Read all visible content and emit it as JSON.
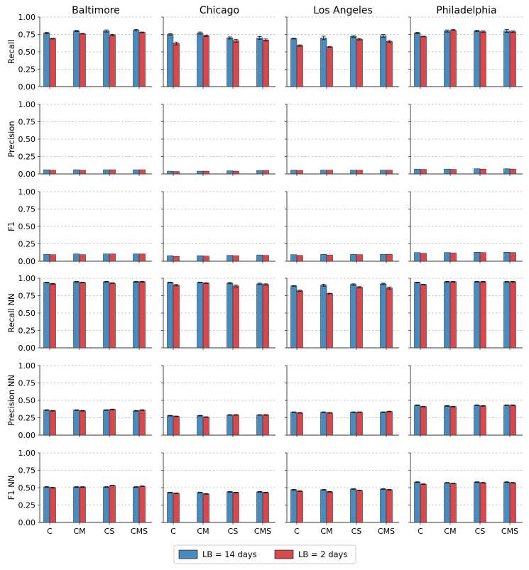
{
  "chart_data": {
    "type": "bar",
    "layout": "grid",
    "columns": [
      "Baltimore",
      "Chicago",
      "Los Angeles",
      "Philadelphia"
    ],
    "rows": [
      "Recall",
      "Precision",
      "F1",
      "Recall NN",
      "Precision NN",
      "F1 NN"
    ],
    "categories": [
      "C",
      "CM",
      "CS",
      "CMS"
    ],
    "ylim": [
      0,
      1
    ],
    "yticks": [
      "0.00",
      "0.25",
      "0.50",
      "0.75",
      "1.00"
    ],
    "grid": true,
    "legend": {
      "placement": "bottom-center",
      "entries": [
        {
          "label": "LB = 14 days",
          "color": "#4a8bbd"
        },
        {
          "label": "LB = 2 days",
          "color": "#d8494d"
        }
      ]
    },
    "panels": {
      "Recall": {
        "Baltimore": {
          "lb14": [
            0.77,
            0.8,
            0.8,
            0.81
          ],
          "lb2": [
            0.69,
            0.76,
            0.74,
            0.78
          ],
          "err14": [
            0.01,
            0.01,
            0.015,
            0.01
          ],
          "err2": [
            0.005,
            0.005,
            0.01,
            0.005
          ]
        },
        "Chicago": {
          "lb14": [
            0.75,
            0.77,
            0.7,
            0.7
          ],
          "lb2": [
            0.62,
            0.73,
            0.66,
            0.67
          ],
          "err14": [
            0.01,
            0.015,
            0.015,
            0.02
          ],
          "err2": [
            0.02,
            0.01,
            0.02,
            0.015
          ]
        },
        "Los Angeles": {
          "lb14": [
            0.69,
            0.7,
            0.72,
            0.73
          ],
          "lb2": [
            0.59,
            0.57,
            0.68,
            0.65
          ],
          "err14": [
            0.005,
            0.025,
            0.01,
            0.02
          ],
          "err2": [
            0.01,
            0.005,
            0.01,
            0.015
          ]
        },
        "Philadelphia": {
          "lb14": [
            0.77,
            0.8,
            0.8,
            0.8
          ],
          "lb2": [
            0.72,
            0.81,
            0.79,
            0.79
          ],
          "err14": [
            0.01,
            0.015,
            0.01,
            0.02
          ],
          "err2": [
            0.005,
            0.01,
            0.01,
            0.01
          ]
        }
      },
      "Precision": {
        "Baltimore": {
          "lb14": [
            0.06,
            0.06,
            0.06,
            0.06
          ],
          "lb2": [
            0.055,
            0.055,
            0.06,
            0.06
          ]
        },
        "Chicago": {
          "lb14": [
            0.04,
            0.04,
            0.045,
            0.05
          ],
          "lb2": [
            0.035,
            0.04,
            0.04,
            0.05
          ]
        },
        "Los Angeles": {
          "lb14": [
            0.055,
            0.055,
            0.055,
            0.055
          ],
          "lb2": [
            0.05,
            0.055,
            0.055,
            0.055
          ]
        },
        "Philadelphia": {
          "lb14": [
            0.07,
            0.07,
            0.075,
            0.075
          ],
          "lb2": [
            0.065,
            0.065,
            0.07,
            0.07
          ]
        }
      },
      "F1": {
        "Baltimore": {
          "lb14": [
            0.1,
            0.105,
            0.105,
            0.105
          ],
          "lb2": [
            0.095,
            0.095,
            0.105,
            0.105
          ]
        },
        "Chicago": {
          "lb14": [
            0.08,
            0.08,
            0.085,
            0.09
          ],
          "lb2": [
            0.07,
            0.075,
            0.08,
            0.085
          ]
        },
        "Los Angeles": {
          "lb14": [
            0.095,
            0.1,
            0.1,
            0.1
          ],
          "lb2": [
            0.085,
            0.09,
            0.095,
            0.1
          ]
        },
        "Philadelphia": {
          "lb14": [
            0.125,
            0.125,
            0.13,
            0.13
          ],
          "lb2": [
            0.115,
            0.12,
            0.125,
            0.125
          ]
        }
      },
      "Recall NN": {
        "Baltimore": {
          "lb14": [
            0.94,
            0.95,
            0.95,
            0.95
          ],
          "lb2": [
            0.92,
            0.94,
            0.93,
            0.95
          ],
          "err14": [
            0.005,
            0.005,
            0.005,
            0.005
          ],
          "err2": [
            0.005,
            0.005,
            0.005,
            0.005
          ]
        },
        "Chicago": {
          "lb14": [
            0.94,
            0.94,
            0.93,
            0.92
          ],
          "lb2": [
            0.9,
            0.93,
            0.89,
            0.91
          ],
          "err14": [
            0.005,
            0.005,
            0.01,
            0.01
          ],
          "err2": [
            0.01,
            0.005,
            0.015,
            0.01
          ]
        },
        "Los Angeles": {
          "lb14": [
            0.89,
            0.9,
            0.91,
            0.92
          ],
          "lb2": [
            0.82,
            0.78,
            0.87,
            0.86
          ],
          "err14": [
            0.005,
            0.015,
            0.01,
            0.01
          ],
          "err2": [
            0.01,
            0.005,
            0.01,
            0.015
          ]
        },
        "Philadelphia": {
          "lb14": [
            0.94,
            0.95,
            0.95,
            0.95
          ],
          "lb2": [
            0.91,
            0.95,
            0.95,
            0.95
          ],
          "err14": [
            0.005,
            0.005,
            0.005,
            0.005
          ],
          "err2": [
            0.005,
            0.005,
            0.005,
            0.005
          ]
        }
      },
      "Precision NN": {
        "Baltimore": {
          "lb14": [
            0.36,
            0.36,
            0.36,
            0.35
          ],
          "lb2": [
            0.35,
            0.35,
            0.37,
            0.36
          ],
          "err14": [
            0.005,
            0.005,
            0.005,
            0.005
          ],
          "err2": [
            0.005,
            0.005,
            0.005,
            0.005
          ]
        },
        "Chicago": {
          "lb14": [
            0.28,
            0.28,
            0.29,
            0.29
          ],
          "lb2": [
            0.27,
            0.26,
            0.29,
            0.29
          ],
          "err14": [
            0.005,
            0.005,
            0.005,
            0.005
          ],
          "err2": [
            0.005,
            0.005,
            0.005,
            0.005
          ]
        },
        "Los Angeles": {
          "lb14": [
            0.33,
            0.33,
            0.33,
            0.33
          ],
          "lb2": [
            0.32,
            0.32,
            0.33,
            0.34
          ],
          "err14": [
            0.005,
            0.005,
            0.005,
            0.005
          ],
          "err2": [
            0.005,
            0.005,
            0.005,
            0.005
          ]
        },
        "Philadelphia": {
          "lb14": [
            0.43,
            0.42,
            0.43,
            0.43
          ],
          "lb2": [
            0.41,
            0.41,
            0.42,
            0.43
          ],
          "err14": [
            0.005,
            0.005,
            0.005,
            0.005
          ],
          "err2": [
            0.005,
            0.005,
            0.005,
            0.005
          ]
        }
      },
      "F1 NN": {
        "Baltimore": {
          "lb14": [
            0.51,
            0.51,
            0.51,
            0.51
          ],
          "lb2": [
            0.5,
            0.51,
            0.53,
            0.52
          ],
          "err14": [
            0.005,
            0.005,
            0.005,
            0.005
          ],
          "err2": [
            0.005,
            0.005,
            0.005,
            0.005
          ]
        },
        "Chicago": {
          "lb14": [
            0.43,
            0.43,
            0.44,
            0.44
          ],
          "lb2": [
            0.42,
            0.41,
            0.43,
            0.43
          ],
          "err14": [
            0.005,
            0.005,
            0.005,
            0.005
          ],
          "err2": [
            0.005,
            0.005,
            0.005,
            0.005
          ]
        },
        "Los Angeles": {
          "lb14": [
            0.47,
            0.47,
            0.48,
            0.48
          ],
          "lb2": [
            0.45,
            0.44,
            0.46,
            0.47
          ],
          "err14": [
            0.005,
            0.005,
            0.005,
            0.005
          ],
          "err2": [
            0.005,
            0.005,
            0.005,
            0.005
          ]
        },
        "Philadelphia": {
          "lb14": [
            0.58,
            0.57,
            0.58,
            0.58
          ],
          "lb2": [
            0.55,
            0.56,
            0.57,
            0.57
          ],
          "err14": [
            0.005,
            0.005,
            0.005,
            0.005
          ],
          "err2": [
            0.005,
            0.005,
            0.005,
            0.005
          ]
        }
      }
    }
  }
}
